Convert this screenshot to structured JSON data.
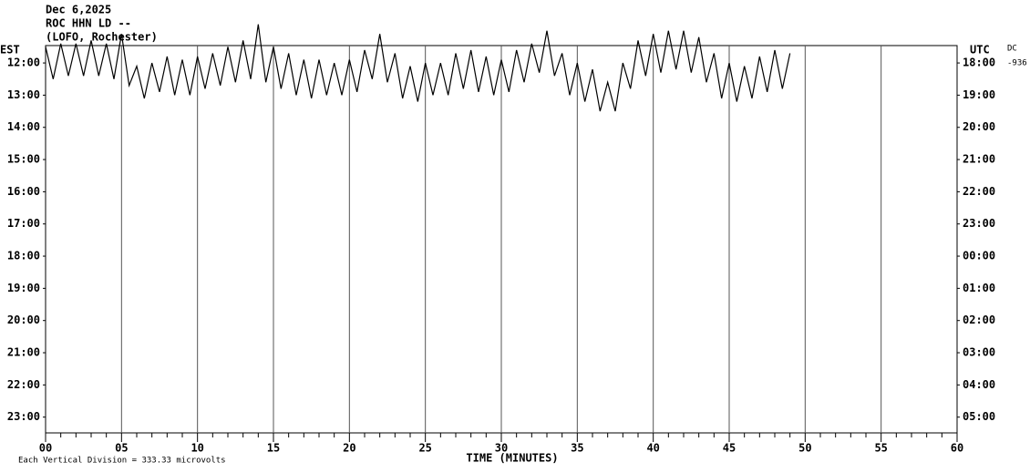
{
  "chart_data": {
    "type": "helicorder",
    "title_lines": [
      "Dec 6,2025",
      "ROC HHN LD --",
      "(LOFO, Rochester)"
    ],
    "left_axis_label": "EST",
    "right_axis_label": "UTC",
    "corner_labels": [
      "DC",
      "-936"
    ],
    "x_label": "TIME (MINUTES)",
    "footnote": "Each Vertical Division =  333.33 microvolts",
    "xlim": [
      0,
      60
    ],
    "xticks": [
      {
        "value": 0,
        "label": "00"
      },
      {
        "value": 5,
        "label": "05"
      },
      10,
      15,
      20,
      25,
      30,
      35,
      40,
      45,
      50,
      55,
      60
    ],
    "xminorticks": [
      1,
      2,
      3,
      4,
      6,
      7,
      8,
      9,
      11,
      12,
      13,
      14,
      16,
      17,
      18,
      19,
      21,
      22,
      23,
      24,
      26,
      27,
      28,
      29,
      31,
      32,
      33,
      34,
      36,
      37,
      38,
      39,
      41,
      42,
      43,
      44,
      46,
      47,
      48,
      49,
      51,
      52,
      53,
      54,
      56,
      57,
      58,
      59
    ],
    "ylim": [
      -11.49,
      0.54
    ],
    "yticks": [
      {
        "value": 0,
        "label": "12:00"
      },
      {
        "value": -1,
        "label": "13:00"
      },
      {
        "value": -2,
        "label": "14:00"
      },
      {
        "value": -3,
        "label": "15:00"
      },
      {
        "value": -4,
        "label": "16:00"
      },
      {
        "value": -5,
        "label": "17:00"
      },
      {
        "value": -6,
        "label": "18:00"
      },
      {
        "value": -7,
        "label": "19:00"
      },
      {
        "value": -8,
        "label": "20:00"
      },
      {
        "value": -9,
        "label": "21:00"
      },
      {
        "value": -10,
        "label": "22:00"
      },
      {
        "value": -11,
        "label": "23:00"
      }
    ],
    "y2lim": [
      -11.49,
      0.54
    ],
    "y2ticks": [
      {
        "value": 0,
        "label": "18:00"
      },
      {
        "value": -1,
        "label": "19:00"
      },
      {
        "value": -2,
        "label": "20:00"
      },
      {
        "value": -3,
        "label": "21:00"
      },
      {
        "value": -4,
        "label": "22:00"
      },
      {
        "value": -5,
        "label": "23:00"
      },
      {
        "value": -6,
        "label": "00:00"
      },
      {
        "value": -7,
        "label": "01:00"
      },
      {
        "value": -8,
        "label": "02:00"
      },
      {
        "value": -9,
        "label": "03:00"
      },
      {
        "value": -10,
        "label": "04:00"
      },
      {
        "value": -11,
        "label": "05:00"
      }
    ],
    "grid": true,
    "series": [
      {
        "color": "#000000",
        "x": [
          0,
          0.5,
          1,
          1.5,
          2,
          2.5,
          3,
          3.5,
          4,
          4.5,
          5,
          5.5,
          6,
          6.5,
          7,
          7.5,
          8,
          8.5,
          9,
          9.5,
          10,
          10.5,
          11,
          11.5,
          12,
          12.5,
          13,
          13.5,
          14,
          14.5,
          15,
          15.5,
          16,
          16.5,
          17,
          17.5,
          18,
          18.5,
          19,
          19.5,
          20,
          20.5,
          21,
          21.5,
          22,
          22.5,
          23,
          23.5,
          24,
          24.5,
          25,
          25.5,
          26,
          26.5,
          27,
          27.5,
          28,
          28.5,
          29,
          29.5,
          30,
          30.5,
          31,
          31.5,
          32,
          32.5,
          33,
          33.5,
          34,
          34.5,
          35,
          35.5,
          36,
          36.5,
          37,
          37.5,
          38,
          38.5,
          39,
          39.5,
          40,
          40.5,
          41,
          41.5,
          42,
          42.5,
          43,
          43.5,
          44,
          44.5,
          45,
          45.5,
          46,
          46.5,
          47,
          47.5,
          48,
          48.5,
          49
        ],
        "values": [
          0.5,
          -0.5,
          0.6,
          -0.4,
          0.6,
          -0.4,
          0.7,
          -0.4,
          0.6,
          -0.5,
          0.9,
          -0.7,
          -0.1,
          -1.1,
          0,
          -0.9,
          0.2,
          -1.0,
          0.1,
          -1.0,
          0.2,
          -0.8,
          0.3,
          -0.7,
          0.5,
          -0.6,
          0.7,
          -0.5,
          1.2,
          -0.6,
          0.5,
          -0.8,
          0.3,
          -1.0,
          0.1,
          -1.1,
          0.1,
          -1.0,
          0,
          -1.0,
          0.1,
          -0.9,
          0.4,
          -0.5,
          0.9,
          -0.6,
          0.3,
          -1.1,
          -0.1,
          -1.2,
          0,
          -1.0,
          0,
          -1.0,
          0.3,
          -0.8,
          0.4,
          -0.9,
          0.2,
          -1.0,
          0.1,
          -0.9,
          0.4,
          -0.6,
          0.6,
          -0.3,
          1.0,
          -0.4,
          0.3,
          -1.0,
          0,
          -1.2,
          -0.2,
          -1.5,
          -0.6,
          -1.5,
          0,
          -0.8,
          0.7,
          -0.4,
          0.9,
          -0.3,
          1.0,
          -0.2,
          1.0,
          -0.3,
          0.8,
          -0.6,
          0.3,
          -1.1,
          0,
          -1.2,
          -0.1,
          -1.1,
          0.2,
          -0.9,
          0.4,
          -0.8,
          0.3
        ]
      }
    ]
  }
}
